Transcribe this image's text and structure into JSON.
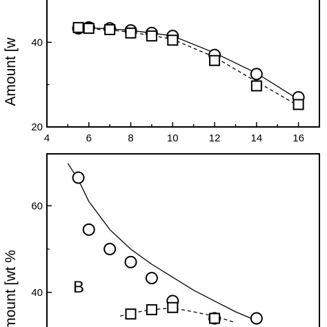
{
  "chart_data": [
    {
      "panel": "top",
      "type": "scatter",
      "ylabel": "Amount [w",
      "xlim": [
        4,
        17
      ],
      "ylim": [
        20,
        50
      ],
      "xticks": [
        4,
        6,
        8,
        10,
        12,
        14,
        16
      ],
      "yticks": [
        20,
        40
      ],
      "grid": false,
      "series": [
        {
          "marker": "circle",
          "fit": "solid",
          "x": [
            5.5,
            6,
            7,
            8,
            9,
            10,
            12,
            14,
            16
          ],
          "y": [
            43.3,
            43.5,
            43.3,
            42.8,
            42.2,
            41.5,
            37.0,
            32.5,
            27.0
          ],
          "curve_y": [
            43.5,
            43.4,
            43.2,
            42.8,
            42.2,
            41.5,
            37.5,
            32.7,
            26.5
          ]
        },
        {
          "marker": "square",
          "fit": "dashed",
          "x": [
            5.5,
            6,
            7,
            8,
            9,
            10,
            12,
            14,
            16
          ],
          "y": [
            43.5,
            43.3,
            43.0,
            42.2,
            41.5,
            40.5,
            35.7,
            29.7,
            25.3
          ],
          "curve_y": [
            43.3,
            43.2,
            42.9,
            42.4,
            41.6,
            40.7,
            36.5,
            30.7,
            25.0
          ]
        }
      ]
    },
    {
      "panel": "bottom",
      "type": "scatter",
      "ylabel": "mount [wt %",
      "label": "B",
      "xlim": [
        4,
        17
      ],
      "ylim": [
        32,
        72
      ],
      "yticks": [
        40,
        60
      ],
      "grid": false,
      "series": [
        {
          "marker": "circle",
          "fit": "solid",
          "x": [
            5.5,
            6,
            7,
            8,
            9,
            10,
            12,
            14
          ],
          "y": [
            66.5,
            54.5,
            50.0,
            47.0,
            43.3,
            38.0,
            34.0,
            34.0
          ],
          "curve_x": [
            5,
            5.5,
            6,
            7,
            8,
            9,
            10,
            11,
            12,
            13,
            14
          ],
          "curve_y": [
            69.8,
            66.0,
            61.0,
            54.5,
            50.0,
            46.5,
            43.5,
            40.5,
            38.0,
            35.5,
            33.5
          ]
        },
        {
          "marker": "square",
          "fit": "dashed",
          "x": [
            8,
            9,
            10,
            12
          ],
          "y": [
            35.0,
            36.0,
            36.5,
            34.0
          ],
          "curve_x": [
            7.5,
            8,
            9,
            10,
            11,
            12,
            13
          ],
          "curve_y": [
            34.5,
            35.2,
            36.0,
            36.4,
            35.5,
            34.5,
            33.0
          ]
        }
      ]
    }
  ]
}
